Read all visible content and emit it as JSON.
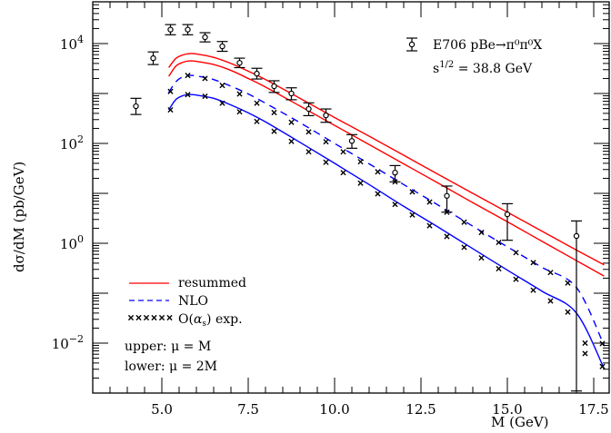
{
  "chart_data": {
    "type": "line",
    "title": "",
    "xlabel": "M (GeV)",
    "ylabel": "dσ/dM (pb/GeV)",
    "xscale": "linear",
    "yscale": "log",
    "xlim": [
      3.0,
      18.0
    ],
    "ylim": [
      0.001,
      70000
    ],
    "grid": false,
    "x_ticks": [
      {
        "value": 5.0,
        "label": "5.0"
      },
      {
        "value": 7.5,
        "label": "7.5"
      },
      {
        "value": 10.0,
        "label": "10.0"
      },
      {
        "value": 12.5,
        "label": "12.5"
      },
      {
        "value": 15.0,
        "label": "15.0"
      },
      {
        "value": 17.5,
        "label": "17.5"
      }
    ],
    "y_ticks": [
      {
        "exp": 4,
        "label": "10",
        "sup": "4"
      },
      {
        "exp": 2,
        "label": "10",
        "sup": "2"
      },
      {
        "exp": 0,
        "label": "10",
        "sup": "0"
      },
      {
        "exp": -2,
        "label": "10",
        "sup": "−2"
      }
    ],
    "annotations": {
      "experiment_label": "E706   pBe→π⁰π⁰X",
      "energy_label_base": "s",
      "energy_label_sup": "1/2",
      "energy_label_rest": " = 38.8 GeV",
      "scale_upper": "upper: μ = M",
      "scale_lower": "lower: μ = 2M"
    },
    "legend": {
      "position": "lower-left",
      "entries": [
        {
          "label": "resummed",
          "style": "solid",
          "color": "#ff0000"
        },
        {
          "label": "NLO",
          "style": "dashed",
          "color": "#0000ff"
        },
        {
          "label": "O(αs) exp.",
          "style": "markers-x",
          "color": "#000000"
        }
      ]
    },
    "data_points": {
      "name": "E706 pBe→π⁰π⁰X",
      "color": "#000000",
      "points": [
        {
          "x": 4.25,
          "y": 556,
          "ylo": 380,
          "yhi": 800
        },
        {
          "x": 4.75,
          "y": 5100,
          "ylo": 3800,
          "yhi": 6800
        },
        {
          "x": 5.25,
          "y": 19000,
          "ylo": 15000,
          "yhi": 24000
        },
        {
          "x": 5.75,
          "y": 19000,
          "ylo": 15000,
          "yhi": 24000
        },
        {
          "x": 6.25,
          "y": 13400,
          "ylo": 10800,
          "yhi": 16500
        },
        {
          "x": 6.75,
          "y": 8800,
          "ylo": 7000,
          "yhi": 11000
        },
        {
          "x": 7.25,
          "y": 4100,
          "ylo": 3300,
          "yhi": 5100
        },
        {
          "x": 7.75,
          "y": 2500,
          "ylo": 1950,
          "yhi": 3200
        },
        {
          "x": 8.25,
          "y": 1400,
          "ylo": 1050,
          "yhi": 1800
        },
        {
          "x": 8.75,
          "y": 1000,
          "ylo": 750,
          "yhi": 1300
        },
        {
          "x": 9.25,
          "y": 490,
          "ylo": 360,
          "yhi": 650
        },
        {
          "x": 9.75,
          "y": 365,
          "ylo": 265,
          "yhi": 490
        },
        {
          "x": 10.5,
          "y": 112,
          "ylo": 80,
          "yhi": 150
        },
        {
          "x": 11.75,
          "y": 26,
          "ylo": 17,
          "yhi": 36
        },
        {
          "x": 13.25,
          "y": 8.9,
          "ylo": 4.2,
          "yhi": 14
        },
        {
          "x": 15.0,
          "y": 3.8,
          "ylo": 1.15,
          "yhi": 6.2
        },
        {
          "x": 17.0,
          "y": 1.4,
          "ylo": 0.0011,
          "yhi": 2.8
        }
      ]
    },
    "series": [
      {
        "name": "resummed (μ = M)",
        "style": "solid",
        "color": "#ff0000",
        "x": [
          5.2,
          5.4,
          5.6,
          5.8,
          6.0,
          6.5,
          7.0,
          7.5,
          8.0,
          9.0,
          10.0,
          11.0,
          12.0,
          13.0,
          14.0,
          15.0,
          16.0,
          17.0,
          17.8
        ],
        "y": [
          3300,
          5000,
          5900,
          6300,
          6200,
          5300,
          4000,
          2800,
          1900,
          800,
          330,
          140,
          58,
          24,
          10,
          4.2,
          1.75,
          0.73,
          0.37
        ]
      },
      {
        "name": "resummed (μ = 2M)",
        "style": "solid",
        "color": "#ff0000",
        "x": [
          5.2,
          5.4,
          5.6,
          5.8,
          6.0,
          6.5,
          7.0,
          7.5,
          8.0,
          9.0,
          10.0,
          11.0,
          12.0,
          13.0,
          14.0,
          15.0,
          16.0,
          17.0,
          17.8
        ],
        "y": [
          2200,
          3500,
          4200,
          4500,
          4400,
          3800,
          2900,
          2000,
          1350,
          560,
          230,
          95,
          39,
          16,
          6.5,
          2.7,
          1.1,
          0.45,
          0.22
        ]
      },
      {
        "name": "NLO (μ = M)",
        "style": "dashed",
        "color": "#0000ff",
        "x": [
          5.2,
          5.4,
          5.6,
          5.8,
          6.0,
          6.5,
          7.0,
          7.5,
          8.0,
          9.0,
          10.0,
          11.0,
          12.0,
          13.0,
          14.0,
          15.0,
          16.0,
          17.0,
          17.8
        ],
        "y": [
          1050,
          1700,
          2150,
          2300,
          2250,
          1900,
          1400,
          980,
          640,
          260,
          100,
          39,
          15,
          5.8,
          2.2,
          0.85,
          0.33,
          0.13,
          0.009
        ]
      },
      {
        "name": "NLO (μ = 2M)",
        "style": "solid",
        "color": "#0000ff",
        "x": [
          5.2,
          5.4,
          5.6,
          5.8,
          6.0,
          6.5,
          7.0,
          7.5,
          8.0,
          9.0,
          10.0,
          11.0,
          12.0,
          13.0,
          14.0,
          15.0,
          16.0,
          17.0,
          17.8
        ],
        "y": [
          470,
          750,
          900,
          950,
          930,
          800,
          590,
          410,
          270,
          105,
          40,
          15,
          5.5,
          2.1,
          0.78,
          0.29,
          0.11,
          0.04,
          0.0031
        ]
      },
      {
        "name": "O(αs) exp. (μ = M)",
        "style": "markers-x",
        "color": "#000000",
        "x": [
          5.25,
          5.75,
          6.25,
          6.75,
          7.25,
          7.75,
          8.25,
          8.75,
          9.25,
          9.75,
          10.25,
          10.75,
          11.25,
          11.75,
          12.25,
          12.75,
          13.25,
          13.75,
          14.25,
          14.75,
          15.25,
          15.75,
          16.25,
          16.75,
          17.25,
          17.75
        ],
        "y": [
          1100,
          2300,
          2000,
          1450,
          980,
          640,
          415,
          265,
          170,
          108,
          68,
          43,
          27,
          17,
          10.7,
          6.7,
          4.2,
          2.65,
          1.65,
          1.04,
          0.65,
          0.41,
          0.26,
          0.16,
          0.01,
          0.0098
        ]
      },
      {
        "name": "O(αs) exp. (μ = 2M)",
        "style": "markers-x",
        "color": "#000000",
        "x": [
          5.25,
          5.75,
          6.25,
          6.75,
          7.25,
          7.75,
          8.25,
          8.75,
          9.25,
          9.75,
          10.25,
          10.75,
          11.25,
          11.75,
          12.25,
          12.75,
          13.25,
          13.75,
          14.25,
          14.75,
          15.25,
          15.75,
          16.25,
          16.75,
          17.25,
          17.75
        ],
        "y": [
          470,
          950,
          880,
          640,
          430,
          275,
          175,
          110,
          68,
          42,
          26,
          16,
          9.8,
          6.0,
          3.7,
          2.25,
          1.37,
          0.83,
          0.51,
          0.31,
          0.19,
          0.115,
          0.07,
          0.042,
          0.0062,
          0.0034
        ]
      }
    ]
  }
}
